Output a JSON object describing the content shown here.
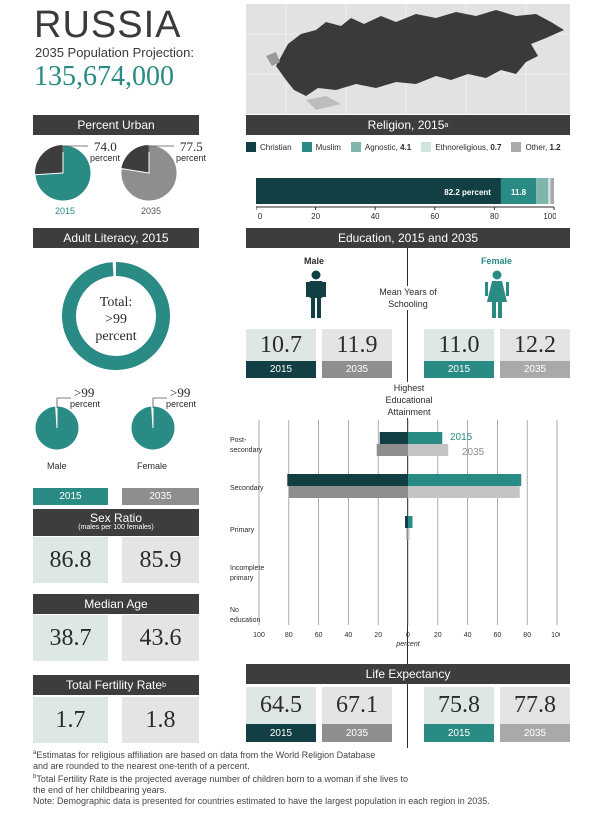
{
  "header": {
    "country": "RUSSIA",
    "projection_label": "2035 Population Projection:",
    "population": "135,674,000"
  },
  "colors": {
    "teal": "#2a8a84",
    "dark_teal": "#123f43",
    "dark_gray": "#3d3d3d",
    "mid_gray": "#8e8e8e",
    "light_gray": "#e4e4e4",
    "pale_teal": "#dde8e6"
  },
  "urban": {
    "title": "Percent Urban",
    "items": [
      {
        "value": "74.0",
        "unit": "percent",
        "year": "2015",
        "fraction": 0.74
      },
      {
        "value": "77.5",
        "unit": "percent",
        "year": "2035",
        "fraction": 0.775
      }
    ]
  },
  "religion": {
    "title": "Religion, 2015",
    "title_sup": "a",
    "legend": [
      {
        "label": "Christian",
        "color": "#123f43"
      },
      {
        "label": "Muslim",
        "color": "#2a8a84"
      },
      {
        "label": "Agnostic,",
        "value": "4.1",
        "color": "#7fb5ad"
      },
      {
        "label": "Ethnoreligious,",
        "value": "0.7",
        "color": "#cfe3df"
      },
      {
        "label": "Other,",
        "value": "1.2",
        "color": "#a9a9a9"
      }
    ],
    "christian_label": "82.2 percent",
    "muslim_label": "11.8",
    "values": [
      82.2,
      11.8,
      4.1,
      0.7,
      1.2
    ],
    "axis_ticks": [
      "0",
      "20",
      "40",
      "60",
      "80",
      "100"
    ]
  },
  "literacy": {
    "title": "Adult Literacy, 2015",
    "total_label": "Total:",
    "total_value": ">99",
    "total_unit": "percent",
    "total_fraction": 0.99,
    "male": {
      "value": ">99",
      "unit": "percent",
      "label": "Male"
    },
    "female": {
      "value": ">99",
      "unit": "percent",
      "label": "Female"
    }
  },
  "years": {
    "y2015": "2015",
    "y2035": "2035"
  },
  "sex_ratio": {
    "title": "Sex Ratio",
    "subtitle": "(males per 100 females)",
    "v2015": "86.8",
    "v2035": "85.9"
  },
  "median_age": {
    "title": "Median Age",
    "v2015": "38.7",
    "v2035": "43.6"
  },
  "fertility": {
    "title": "Total Fertility Rate",
    "title_sup": "b",
    "v2015": "1.7",
    "v2035": "1.8"
  },
  "education": {
    "title": "Education, 2015 and 2035",
    "male_label": "Male",
    "female_label": "Female",
    "mean_years_label": "Mean Years of Schooling",
    "male_2015": "10.7",
    "male_2035": "11.9",
    "female_2015": "11.0",
    "female_2035": "12.2",
    "attainment_label": "Highest Educational Attainment",
    "legend_2015": "2015",
    "legend_2035": "2035",
    "axis_unit": "percent",
    "axis_ticks": [
      "100",
      "80",
      "60",
      "40",
      "20",
      "0",
      "20",
      "40",
      "60",
      "80",
      "100"
    ]
  },
  "chart_data": {
    "type": "bar",
    "title": "Highest Educational Attainment",
    "categories": [
      "Post-secondary",
      "Secondary",
      "Primary",
      "Incomplete primary",
      "No education"
    ],
    "series": [
      {
        "name": "2015",
        "side": "male",
        "values": [
          19,
          81,
          2,
          0,
          0
        ]
      },
      {
        "name": "2035",
        "side": "male",
        "values": [
          21,
          80,
          1,
          0,
          0
        ]
      },
      {
        "name": "2015",
        "side": "female",
        "values": [
          23,
          76,
          3,
          0,
          0
        ]
      },
      {
        "name": "2035",
        "side": "female",
        "values": [
          27,
          75,
          1,
          0,
          0
        ]
      }
    ],
    "xlabel": "percent",
    "xlim": [
      -100,
      100
    ]
  },
  "life_expectancy": {
    "title": "Life Expectancy",
    "male_2015": "64.5",
    "male_2035": "67.1",
    "female_2015": "75.8",
    "female_2035": "77.8"
  },
  "footnotes": {
    "a1": "Estimatas for religious affiliation are based on data from the World Religion Database",
    "a2": "and are rounded to the nearest one-tenth of a percent.",
    "b1": "Total Fertility Rate is the projected average number of children born to a woman if she lives to",
    "b2": "the end of her childbearing years.",
    "note": "Note: Demographic data is presented for countries estimated to have the largest population in each region in 2035."
  }
}
